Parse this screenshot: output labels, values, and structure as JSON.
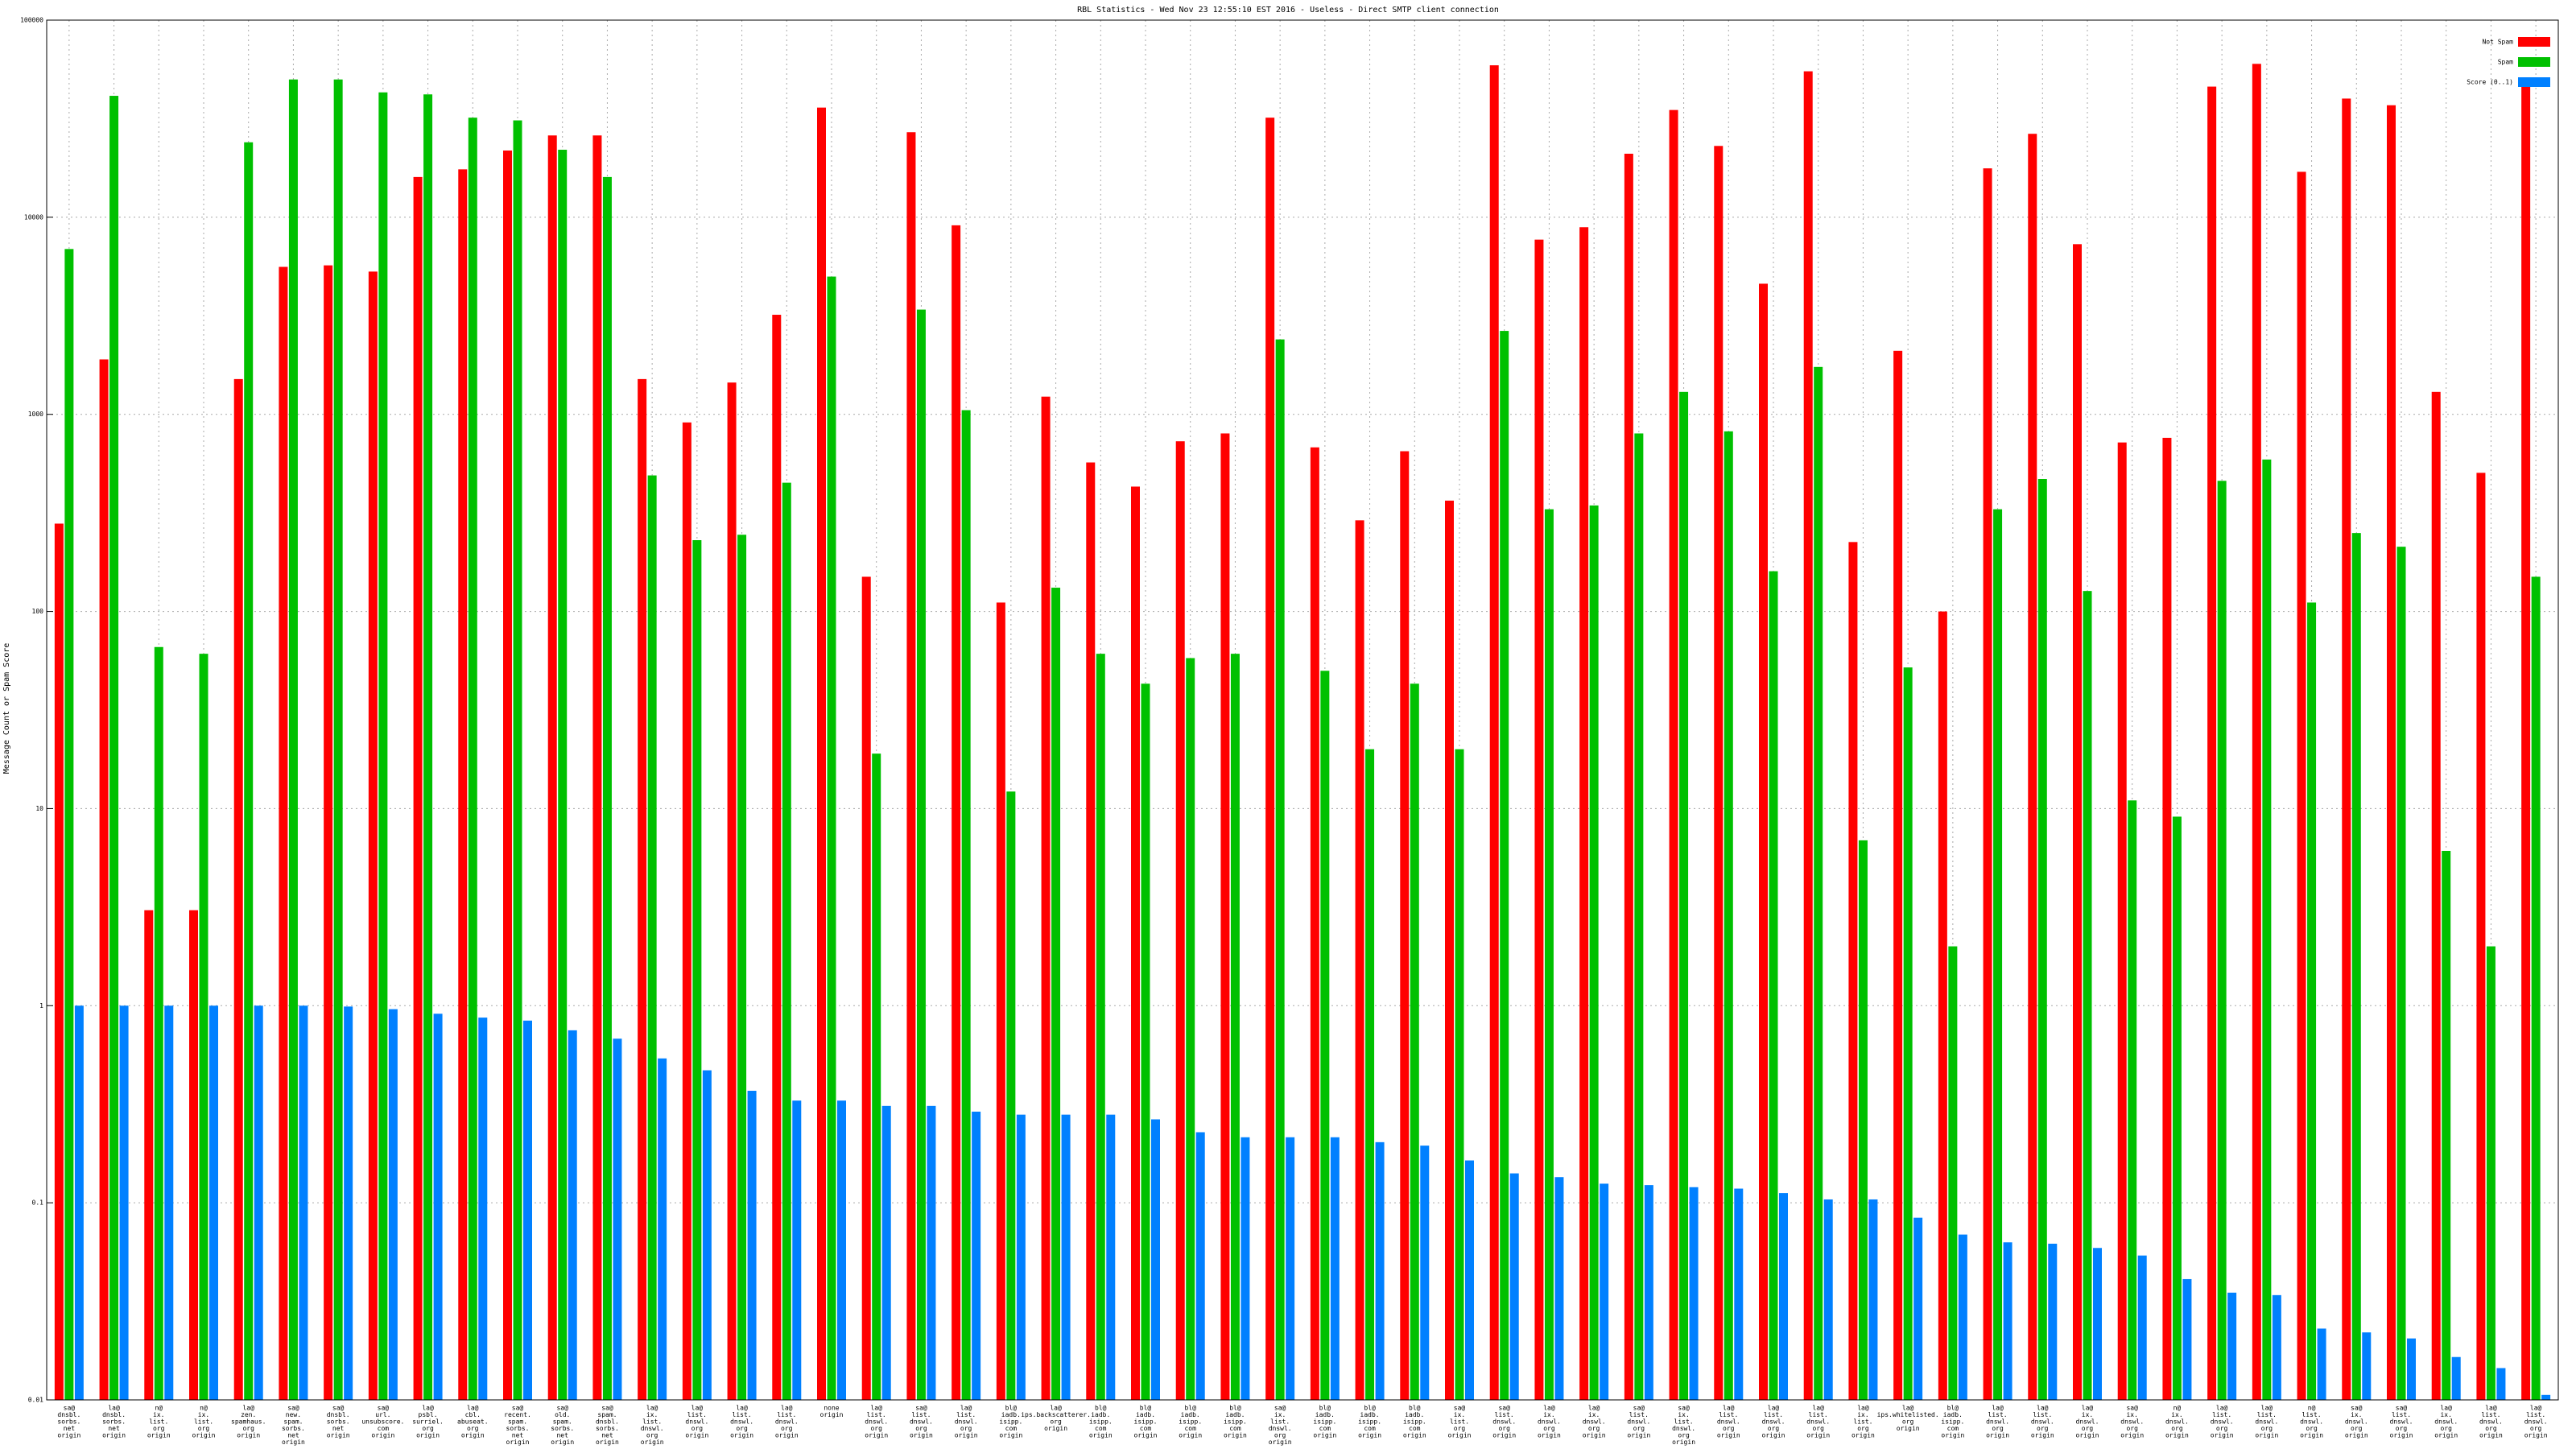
{
  "chart_data": {
    "type": "bar",
    "title": "RBL Statistics - Wed Nov 23 12:55:10 EST 2016 - Useless - Direct SMTP client connection",
    "y_label": "Message Count or Spam Score",
    "log_scale": true,
    "grid": true,
    "legend_position": "top-right",
    "categories": [
      [
        "sa@",
        "dnsbl.",
        "sorbs.",
        "net",
        "origin"
      ],
      [
        "la@",
        "dnsbl.",
        "sorbs.",
        "net",
        "origin"
      ],
      [
        "n@",
        "ix.",
        "list.",
        "org",
        "origin"
      ],
      [
        "n@",
        "ix.",
        "list.",
        "org",
        "origin"
      ],
      [
        "la@",
        "zen.",
        "spamhaus.",
        "org",
        "origin"
      ],
      [
        "sa@",
        "new.",
        "spam.",
        "sorbs.",
        "net",
        "origin"
      ],
      [
        "sa@",
        "dnsbl.",
        "sorbs.",
        "net",
        "origin"
      ],
      [
        "sa@",
        "url.",
        "unsubscore.",
        "com",
        "origin"
      ],
      [
        "la@",
        "psbl.",
        "surriel.",
        "org",
        "origin"
      ],
      [
        "la@",
        "cbl.",
        "abuseat.",
        "org",
        "origin"
      ],
      [
        "sa@",
        "recent.",
        "spam.",
        "sorbs.",
        "net",
        "origin"
      ],
      [
        "sa@",
        "old.",
        "spam.",
        "sorbs.",
        "net",
        "origin"
      ],
      [
        "sa@",
        "spam.",
        "dnsbl.",
        "sorbs.",
        "net",
        "origin"
      ],
      [
        "la@",
        "ix.",
        "list.",
        "dnswl.",
        "org",
        "origin"
      ],
      [
        "la@",
        "list.",
        "dnswl.",
        "org",
        "origin"
      ],
      [
        "la@",
        "list.",
        "dnswl.",
        "org",
        "origin"
      ],
      [
        "la@",
        "list.",
        "dnswl.",
        "org",
        "origin"
      ],
      [
        "none",
        "origin"
      ],
      [
        "la@",
        "list.",
        "dnswl.",
        "org",
        "origin"
      ],
      [
        "sa@",
        "list.",
        "dnswl.",
        "org",
        "origin"
      ],
      [
        "la@",
        "list.",
        "dnswl.",
        "org",
        "origin"
      ],
      [
        "bl@",
        "iadb.",
        "isipp.",
        "com",
        "origin"
      ],
      [
        "la@",
        "ips.backscatterer.",
        "org",
        "origin"
      ],
      [
        "bl@",
        "iadb.",
        "isipp.",
        "com",
        "origin"
      ],
      [
        "bl@",
        "iadb.",
        "isipp.",
        "com",
        "origin"
      ],
      [
        "bl@",
        "iadb.",
        "isipp.",
        "com",
        "origin"
      ],
      [
        "bl@",
        "iadb.",
        "isipp.",
        "com",
        "origin"
      ],
      [
        "sa@",
        "ix.",
        "list.",
        "dnswl.",
        "org",
        "origin"
      ],
      [
        "bl@",
        "iadb.",
        "isipp.",
        "com",
        "origin"
      ],
      [
        "bl@",
        "iadb.",
        "isipp.",
        "com",
        "origin"
      ],
      [
        "bl@",
        "iadb.",
        "isipp.",
        "com",
        "origin"
      ],
      [
        "sa@",
        "ix.",
        "list.",
        "org",
        "origin"
      ],
      [
        "sa@",
        "list.",
        "dnswl.",
        "org",
        "origin"
      ],
      [
        "la@",
        "ix.",
        "dnswl.",
        "org",
        "origin"
      ],
      [
        "la@",
        "ix.",
        "dnswl.",
        "org",
        "origin"
      ],
      [
        "sa@",
        "list.",
        "dnswl.",
        "org",
        "origin"
      ],
      [
        "sa@",
        "ix.",
        "list.",
        "dnswl.",
        "org",
        "origin"
      ],
      [
        "la@",
        "list.",
        "dnswl.",
        "org",
        "origin"
      ],
      [
        "la@",
        "list.",
        "dnswl.",
        "org",
        "origin"
      ],
      [
        "la@",
        "list.",
        "dnswl.",
        "org",
        "origin"
      ],
      [
        "la@",
        "ix.",
        "list.",
        "org",
        "origin"
      ],
      [
        "la@",
        "ips.whitelisted.",
        "org",
        "origin"
      ],
      [
        "bl@",
        "iadb.",
        "isipp.",
        "com",
        "origin"
      ],
      [
        "la@",
        "list.",
        "dnswl.",
        "org",
        "origin"
      ],
      [
        "la@",
        "list.",
        "dnswl.",
        "org",
        "origin"
      ],
      [
        "la@",
        "ix.",
        "dnswl.",
        "org",
        "origin"
      ],
      [
        "sa@",
        "ix.",
        "dnswl.",
        "org",
        "origin"
      ],
      [
        "n@",
        "ix.",
        "dnswl.",
        "org",
        "origin"
      ],
      [
        "la@",
        "list.",
        "dnswl.",
        "org",
        "origin"
      ],
      [
        "la@",
        "list.",
        "dnswl.",
        "org",
        "origin"
      ],
      [
        "n@",
        "list.",
        "dnswl.",
        "org",
        "origin"
      ],
      [
        "sa@",
        "ix.",
        "dnswl.",
        "org",
        "origin"
      ],
      [
        "sa@",
        "list.",
        "dnswl.",
        "org",
        "origin"
      ],
      [
        "la@",
        "ix.",
        "dnswl.",
        "org",
        "origin"
      ],
      [
        "la@",
        "list.",
        "dnswl.",
        "org",
        "origin"
      ],
      [
        "la@",
        "list.",
        "dnswl.",
        "org",
        "origin"
      ]
    ],
    "series": [
      {
        "name": "Not Spam",
        "color": "#ff0000",
        "values": [
          279,
          1900,
          3.05,
          3.05,
          1510,
          5600,
          5700,
          5300,
          16000,
          17500,
          21800,
          26000,
          26000,
          1510,
          910,
          1450,
          3200,
          36000,
          150,
          27000,
          9100,
          111,
          1230,
          570,
          430,
          730,
          800,
          32000,
          680,
          290,
          650,
          365,
          59000,
          7700,
          8900,
          21000,
          35000,
          23000,
          4600,
          55000,
          225,
          2100,
          100,
          17700,
          26500,
          7300,
          720,
          760,
          46000,
          60000,
          17000,
          40000,
          37000,
          1300,
          505,
          51000
        ]
      },
      {
        "name": "Spam",
        "color": "#00c000",
        "values": [
          6900,
          41300,
          66,
          61,
          24000,
          50000,
          50000,
          43000,
          42000,
          32000,
          31000,
          22000,
          16000,
          490,
          230,
          245,
          450,
          5000,
          19,
          3400,
          1050,
          12.2,
          132,
          61,
          43,
          58,
          61,
          2400,
          50,
          20,
          43,
          20,
          2650,
          330,
          345,
          800,
          1300,
          820,
          160,
          1740,
          6.9,
          52,
          2.0,
          330,
          470,
          127,
          11,
          9.1,
          460,
          590,
          111,
          250,
          213,
          6.1,
          2.0,
          150
        ]
      },
      {
        "name": "Score (0..1)",
        "color": "#0080ff",
        "values": [
          1,
          1,
          1,
          1,
          1,
          1,
          0.99,
          0.96,
          0.91,
          0.87,
          0.84,
          0.75,
          0.68,
          0.54,
          0.47,
          0.37,
          0.33,
          0.33,
          0.31,
          0.31,
          0.29,
          0.28,
          0.28,
          0.28,
          0.265,
          0.228,
          0.215,
          0.215,
          0.215,
          0.203,
          0.195,
          0.164,
          0.141,
          0.135,
          0.125,
          0.123,
          0.12,
          0.118,
          0.112,
          0.104,
          0.104,
          0.084,
          0.069,
          0.063,
          0.062,
          0.059,
          0.054,
          0.041,
          0.035,
          0.034,
          0.023,
          0.022,
          0.0205,
          0.0165,
          0.0145,
          0.0106
        ]
      }
    ],
    "ylim": [
      0.01,
      100000
    ],
    "yticks": [
      0.01,
      0.1,
      1,
      10,
      100,
      1000,
      10000,
      100000
    ]
  }
}
